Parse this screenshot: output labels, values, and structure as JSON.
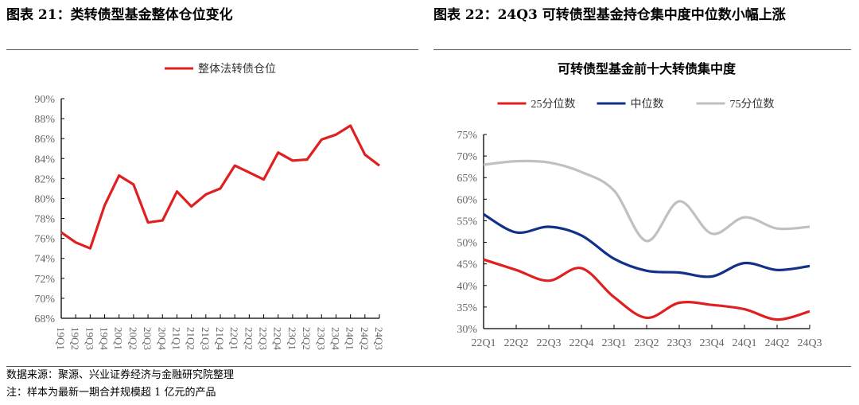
{
  "left": {
    "title": "图表 21：类转债型基金整体仓位变化"
  },
  "right": {
    "title": "图表 22：24Q3 可转债型基金持仓集中度中位数小幅上涨"
  },
  "footer": {
    "source": "数据来源：聚源、兴业证券经济与金融研究院整理",
    "note": "注：样本为最新一期合并规模超 1 亿元的产品"
  },
  "chart_data": [
    {
      "type": "line",
      "title": "",
      "legend_position": "top-center",
      "categories": [
        "19Q1",
        "19Q2",
        "19Q3",
        "19Q4",
        "20Q1",
        "20Q2",
        "20Q3",
        "20Q4",
        "21Q1",
        "21Q2",
        "21Q3",
        "21Q4",
        "22Q1",
        "22Q2",
        "22Q3",
        "22Q4",
        "23Q1",
        "23Q2",
        "23Q3",
        "23Q4",
        "24Q1",
        "24Q2",
        "24Q3"
      ],
      "series": [
        {
          "name": "整体法转债仓位",
          "color": "#e02020",
          "values": [
            76.6,
            75.6,
            75.0,
            79.3,
            82.3,
            81.4,
            77.6,
            77.8,
            80.7,
            79.2,
            80.4,
            81.0,
            83.3,
            82.6,
            81.9,
            84.6,
            83.8,
            83.9,
            85.9,
            86.4,
            87.3,
            84.4,
            83.3
          ]
        }
      ],
      "ylim": [
        68,
        90
      ],
      "yticks": [
        "68%",
        "70%",
        "72%",
        "74%",
        "76%",
        "78%",
        "80%",
        "82%",
        "84%",
        "86%",
        "88%",
        "90%"
      ]
    },
    {
      "type": "line",
      "title": "可转债型基金前十大转债集中度",
      "legend_position": "top",
      "categories": [
        "22Q1",
        "22Q2",
        "22Q3",
        "22Q4",
        "23Q1",
        "23Q2",
        "23Q3",
        "23Q4",
        "24Q1",
        "24Q2",
        "24Q3"
      ],
      "series": [
        {
          "name": "25分位数",
          "color": "#e02020",
          "values": [
            46,
            43.6,
            41.1,
            44,
            37.3,
            32.5,
            36,
            35.5,
            34.5,
            32.1,
            34
          ]
        },
        {
          "name": "中位数",
          "color": "#12318a",
          "values": [
            56.5,
            52.3,
            53.6,
            51.6,
            46.2,
            43.4,
            43,
            42.1,
            45.2,
            43.6,
            44.5
          ]
        },
        {
          "name": "75分位数",
          "color": "#c0c0c0",
          "values": [
            68,
            68.8,
            68.5,
            66.3,
            62,
            50.3,
            59.5,
            52,
            55.8,
            53.2,
            53.6
          ]
        }
      ],
      "ylim": [
        30,
        75
      ],
      "yticks": [
        "30%",
        "35%",
        "40%",
        "45%",
        "50%",
        "55%",
        "60%",
        "65%",
        "70%",
        "75%"
      ]
    }
  ]
}
